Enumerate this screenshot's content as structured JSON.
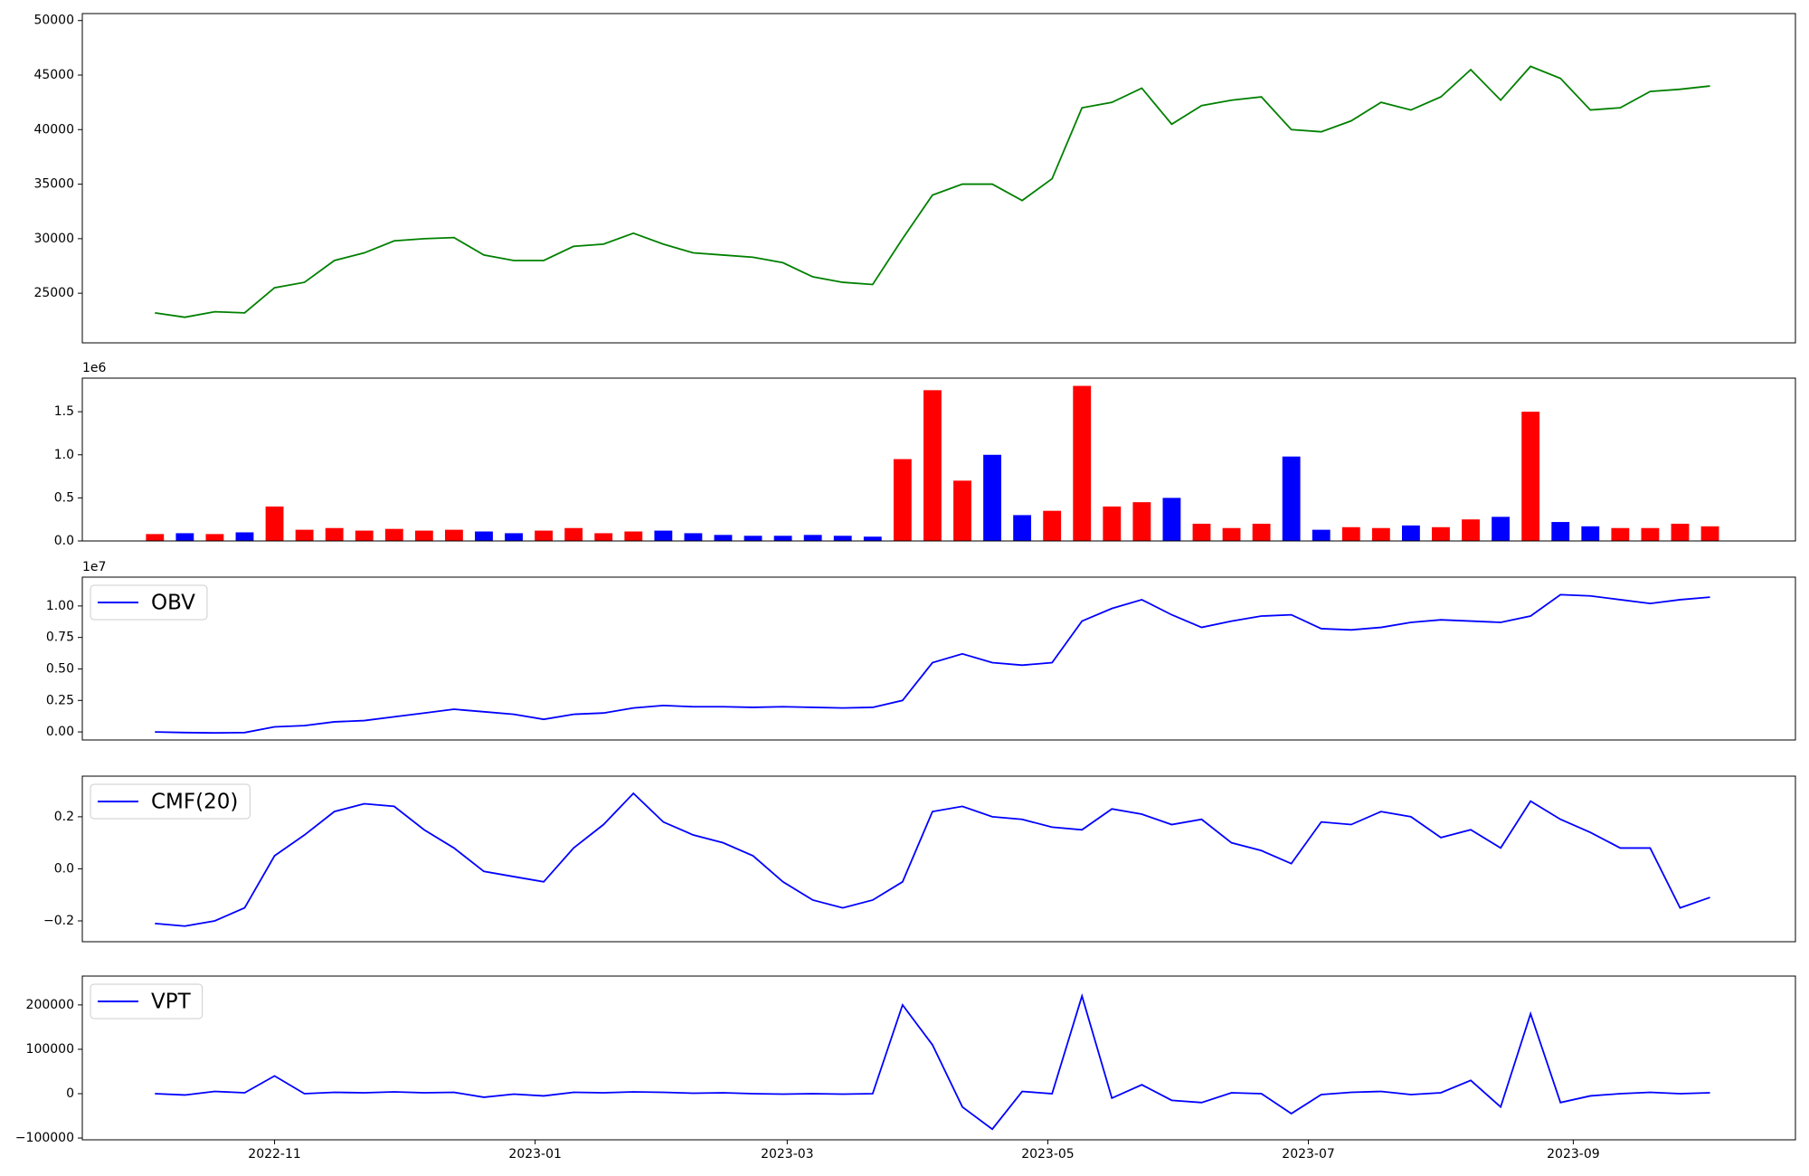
{
  "chart_data": [
    {
      "type": "line",
      "color": "green",
      "x": [
        "2022-10-04",
        "2022-10-11",
        "2022-10-18",
        "2022-10-25",
        "2022-11-01",
        "2022-11-08",
        "2022-11-15",
        "2022-11-22",
        "2022-11-29",
        "2022-12-06",
        "2022-12-13",
        "2022-12-20",
        "2022-12-27",
        "2023-01-03",
        "2023-01-10",
        "2023-01-17",
        "2023-01-24",
        "2023-01-31",
        "2023-02-07",
        "2023-02-14",
        "2023-02-21",
        "2023-02-28",
        "2023-03-07",
        "2023-03-14",
        "2023-03-21",
        "2023-03-28",
        "2023-04-04",
        "2023-04-11",
        "2023-04-18",
        "2023-04-25",
        "2023-05-02",
        "2023-05-09",
        "2023-05-16",
        "2023-05-23",
        "2023-05-30",
        "2023-06-06",
        "2023-06-13",
        "2023-06-20",
        "2023-06-27",
        "2023-07-04",
        "2023-07-11",
        "2023-07-18",
        "2023-07-25",
        "2023-08-01",
        "2023-08-08",
        "2023-08-15",
        "2023-08-22",
        "2023-08-29",
        "2023-09-05",
        "2023-09-12",
        "2023-09-19",
        "2023-09-26",
        "2023-10-03"
      ],
      "values": [
        23200,
        22800,
        23300,
        23200,
        25500,
        26000,
        28000,
        28700,
        29800,
        30000,
        30100,
        28500,
        28000,
        28000,
        29300,
        29500,
        30500,
        29500,
        28700,
        28500,
        28300,
        27800,
        26500,
        26000,
        25800,
        30000,
        34000,
        35000,
        35000,
        33500,
        35500,
        42000,
        42500,
        43800,
        40500,
        42200,
        42700,
        43000,
        40000,
        39800,
        40800,
        42500,
        41800,
        43000,
        45500,
        42700,
        45800,
        44700,
        41800,
        42000,
        43500,
        43700,
        44000
      ],
      "xlim": [
        "2022-09-17",
        "2023-10-23"
      ],
      "ylim": [
        20450,
        50640
      ],
      "yticks": [
        25000,
        30000,
        35000,
        40000,
        45000,
        50000
      ]
    },
    {
      "type": "bar",
      "y_offset_text": "1e6",
      "x": [
        "2022-10-04",
        "2022-10-11",
        "2022-10-18",
        "2022-10-25",
        "2022-11-01",
        "2022-11-08",
        "2022-11-15",
        "2022-11-22",
        "2022-11-29",
        "2022-12-06",
        "2022-12-13",
        "2022-12-20",
        "2022-12-27",
        "2023-01-03",
        "2023-01-10",
        "2023-01-17",
        "2023-01-24",
        "2023-01-31",
        "2023-02-07",
        "2023-02-14",
        "2023-02-21",
        "2023-02-28",
        "2023-03-07",
        "2023-03-14",
        "2023-03-21",
        "2023-03-28",
        "2023-04-04",
        "2023-04-11",
        "2023-04-18",
        "2023-04-25",
        "2023-05-02",
        "2023-05-09",
        "2023-05-16",
        "2023-05-23",
        "2023-05-30",
        "2023-06-06",
        "2023-06-13",
        "2023-06-20",
        "2023-06-27",
        "2023-07-04",
        "2023-07-11",
        "2023-07-18",
        "2023-07-25",
        "2023-08-01",
        "2023-08-08",
        "2023-08-15",
        "2023-08-22",
        "2023-08-29",
        "2023-09-05",
        "2023-09-12",
        "2023-09-19",
        "2023-09-26",
        "2023-10-03"
      ],
      "values": [
        80000,
        90000,
        80000,
        100000,
        400000,
        130000,
        150000,
        120000,
        140000,
        120000,
        130000,
        110000,
        90000,
        120000,
        150000,
        90000,
        110000,
        120000,
        90000,
        70000,
        60000,
        60000,
        70000,
        60000,
        50000,
        950000,
        1750000,
        700000,
        1000000,
        300000,
        350000,
        1800000,
        400000,
        450000,
        500000,
        200000,
        150000,
        200000,
        980000,
        130000,
        160000,
        150000,
        180000,
        160000,
        250000,
        280000,
        1500000,
        220000,
        170000,
        150000,
        150000,
        200000,
        170000
      ],
      "colors": [
        "red",
        "blue",
        "red",
        "blue",
        "red",
        "red",
        "red",
        "red",
        "red",
        "red",
        "red",
        "blue",
        "blue",
        "red",
        "red",
        "red",
        "red",
        "blue",
        "blue",
        "blue",
        "blue",
        "blue",
        "blue",
        "blue",
        "blue",
        "red",
        "red",
        "red",
        "blue",
        "blue",
        "red",
        "red",
        "red",
        "red",
        "blue",
        "red",
        "red",
        "red",
        "blue",
        "blue",
        "red",
        "red",
        "blue",
        "red",
        "red",
        "blue",
        "red",
        "blue",
        "blue",
        "red",
        "red",
        "red",
        "red"
      ],
      "xlim": [
        "2022-09-17",
        "2023-10-23"
      ],
      "ylim": [
        0,
        1890000
      ],
      "yticks": [
        {
          "value": 0,
          "label": "0.0"
        },
        {
          "value": 500000,
          "label": "0.5"
        },
        {
          "value": 1000000,
          "label": "1.0"
        },
        {
          "value": 1500000,
          "label": "1.5"
        }
      ]
    },
    {
      "type": "line",
      "y_offset_text": "1e7",
      "x": [
        "2022-10-04",
        "2022-10-11",
        "2022-10-18",
        "2022-10-25",
        "2022-11-01",
        "2022-11-08",
        "2022-11-15",
        "2022-11-22",
        "2022-11-29",
        "2022-12-06",
        "2022-12-13",
        "2022-12-20",
        "2022-12-27",
        "2023-01-03",
        "2023-01-10",
        "2023-01-17",
        "2023-01-24",
        "2023-01-31",
        "2023-02-07",
        "2023-02-14",
        "2023-02-21",
        "2023-02-28",
        "2023-03-07",
        "2023-03-14",
        "2023-03-21",
        "2023-03-28",
        "2023-04-04",
        "2023-04-11",
        "2023-04-18",
        "2023-04-25",
        "2023-05-02",
        "2023-05-09",
        "2023-05-16",
        "2023-05-23",
        "2023-05-30",
        "2023-06-06",
        "2023-06-13",
        "2023-06-20",
        "2023-06-27",
        "2023-07-04",
        "2023-07-11",
        "2023-07-18",
        "2023-07-25",
        "2023-08-01",
        "2023-08-08",
        "2023-08-15",
        "2023-08-22",
        "2023-08-29",
        "2023-09-05",
        "2023-09-12",
        "2023-09-19",
        "2023-09-26",
        "2023-10-03"
      ],
      "series": [
        {
          "name": "OBV",
          "color": "blue",
          "values": [
            0,
            -50000,
            -80000,
            -50000,
            400000,
            500000,
            800000,
            900000,
            1200000,
            1500000,
            1800000,
            1600000,
            1400000,
            1000000,
            1400000,
            1500000,
            1900000,
            2100000,
            2000000,
            2000000,
            1950000,
            2000000,
            1950000,
            1900000,
            1950000,
            2500000,
            5500000,
            6200000,
            5500000,
            5300000,
            5500000,
            8800000,
            9800000,
            10500000,
            9300000,
            8300000,
            8800000,
            9200000,
            9300000,
            8200000,
            8100000,
            8300000,
            8700000,
            8900000,
            8800000,
            8700000,
            9200000,
            10900000,
            10800000,
            10500000,
            10200000,
            10500000,
            10700000
          ]
        }
      ],
      "xlim": [
        "2022-09-17",
        "2023-10-23"
      ],
      "ylim": [
        -640000,
        12290000
      ],
      "yticks": [
        {
          "value": 0,
          "label": "0.00"
        },
        {
          "value": 2500000,
          "label": "0.25"
        },
        {
          "value": 5000000,
          "label": "0.50"
        },
        {
          "value": 7500000,
          "label": "0.75"
        },
        {
          "value": 10000000,
          "label": "1.00"
        }
      ],
      "legend": "upper left"
    },
    {
      "type": "line",
      "x": [
        "2022-10-04",
        "2022-10-11",
        "2022-10-18",
        "2022-10-25",
        "2022-11-01",
        "2022-11-08",
        "2022-11-15",
        "2022-11-22",
        "2022-11-29",
        "2022-12-06",
        "2022-12-13",
        "2022-12-20",
        "2022-12-27",
        "2023-01-03",
        "2023-01-10",
        "2023-01-17",
        "2023-01-24",
        "2023-01-31",
        "2023-02-07",
        "2023-02-14",
        "2023-02-21",
        "2023-02-28",
        "2023-03-07",
        "2023-03-14",
        "2023-03-21",
        "2023-03-28",
        "2023-04-04",
        "2023-04-11",
        "2023-04-18",
        "2023-04-25",
        "2023-05-02",
        "2023-05-09",
        "2023-05-16",
        "2023-05-23",
        "2023-05-30",
        "2023-06-06",
        "2023-06-13",
        "2023-06-20",
        "2023-06-27",
        "2023-07-04",
        "2023-07-11",
        "2023-07-18",
        "2023-07-25",
        "2023-08-01",
        "2023-08-08",
        "2023-08-15",
        "2023-08-22",
        "2023-08-29",
        "2023-09-05",
        "2023-09-12",
        "2023-09-19",
        "2023-09-26",
        "2023-10-03"
      ],
      "series": [
        {
          "name": "CMF(20)",
          "color": "blue",
          "values": [
            -0.21,
            -0.22,
            -0.2,
            -0.15,
            0.05,
            0.13,
            0.22,
            0.25,
            0.24,
            0.15,
            0.08,
            -0.01,
            -0.03,
            -0.05,
            0.08,
            0.17,
            0.29,
            0.18,
            0.13,
            0.1,
            0.05,
            -0.05,
            -0.12,
            -0.15,
            -0.12,
            -0.05,
            0.22,
            0.24,
            0.2,
            0.19,
            0.16,
            0.15,
            0.23,
            0.21,
            0.17,
            0.19,
            0.1,
            0.07,
            0.02,
            0.18,
            0.17,
            0.22,
            0.2,
            0.12,
            0.15,
            0.08,
            0.26,
            0.19,
            0.14,
            0.08,
            0.08,
            -0.15,
            -0.11
          ]
        }
      ],
      "xlim": [
        "2022-09-17",
        "2023-10-23"
      ],
      "ylim": [
        -0.28,
        0.356
      ],
      "yticks": [
        {
          "value": -0.2,
          "label": "−0.2"
        },
        {
          "value": 0,
          "label": "0.0"
        },
        0.2
      ],
      "legend": "upper left"
    },
    {
      "type": "line",
      "x": [
        "2022-10-04",
        "2022-10-11",
        "2022-10-18",
        "2022-10-25",
        "2022-11-01",
        "2022-11-08",
        "2022-11-15",
        "2022-11-22",
        "2022-11-29",
        "2022-12-06",
        "2022-12-13",
        "2022-12-20",
        "2022-12-27",
        "2023-01-03",
        "2023-01-10",
        "2023-01-17",
        "2023-01-24",
        "2023-01-31",
        "2023-02-07",
        "2023-02-14",
        "2023-02-21",
        "2023-02-28",
        "2023-03-07",
        "2023-03-14",
        "2023-03-21",
        "2023-03-28",
        "2023-04-04",
        "2023-04-11",
        "2023-04-18",
        "2023-04-25",
        "2023-05-02",
        "2023-05-09",
        "2023-05-16",
        "2023-05-23",
        "2023-05-30",
        "2023-06-06",
        "2023-06-13",
        "2023-06-20",
        "2023-06-27",
        "2023-07-04",
        "2023-07-11",
        "2023-07-18",
        "2023-07-25",
        "2023-08-01",
        "2023-08-08",
        "2023-08-15",
        "2023-08-22",
        "2023-08-29",
        "2023-09-05",
        "2023-09-12",
        "2023-09-19",
        "2023-09-26",
        "2023-10-03"
      ],
      "series": [
        {
          "name": "VPT",
          "color": "blue",
          "values": [
            0,
            -3000,
            5000,
            2000,
            40000,
            0,
            3000,
            2000,
            4000,
            2000,
            3000,
            -8000,
            -1000,
            -5000,
            3000,
            2000,
            4000,
            3000,
            1000,
            2000,
            0,
            -1000,
            0,
            -1000,
            0,
            200000,
            110000,
            -30000,
            -80000,
            5000,
            0,
            220000,
            -10000,
            20000,
            -15000,
            -20000,
            2000,
            0,
            -45000,
            -2000,
            3000,
            5000,
            -2000,
            2000,
            30000,
            -30000,
            180000,
            -20000,
            -5000,
            0,
            3000,
            0,
            2000
          ]
        }
      ],
      "xlim": [
        "2022-09-17",
        "2023-10-23"
      ],
      "ylim": [
        -104000,
        265000
      ],
      "yticks": [
        {
          "value": -100000,
          "label": "−100000"
        },
        0,
        100000,
        200000
      ],
      "legend": "upper left",
      "xticks": [
        {
          "value": "2022-11-01",
          "label": "2022-11"
        },
        {
          "value": "2023-01-01",
          "label": "2023-01"
        },
        {
          "value": "2023-03-01",
          "label": "2023-03"
        },
        {
          "value": "2023-05-01",
          "label": "2023-05"
        },
        {
          "value": "2023-07-01",
          "label": "2023-07"
        },
        {
          "value": "2023-09-01",
          "label": "2023-09"
        }
      ]
    }
  ]
}
